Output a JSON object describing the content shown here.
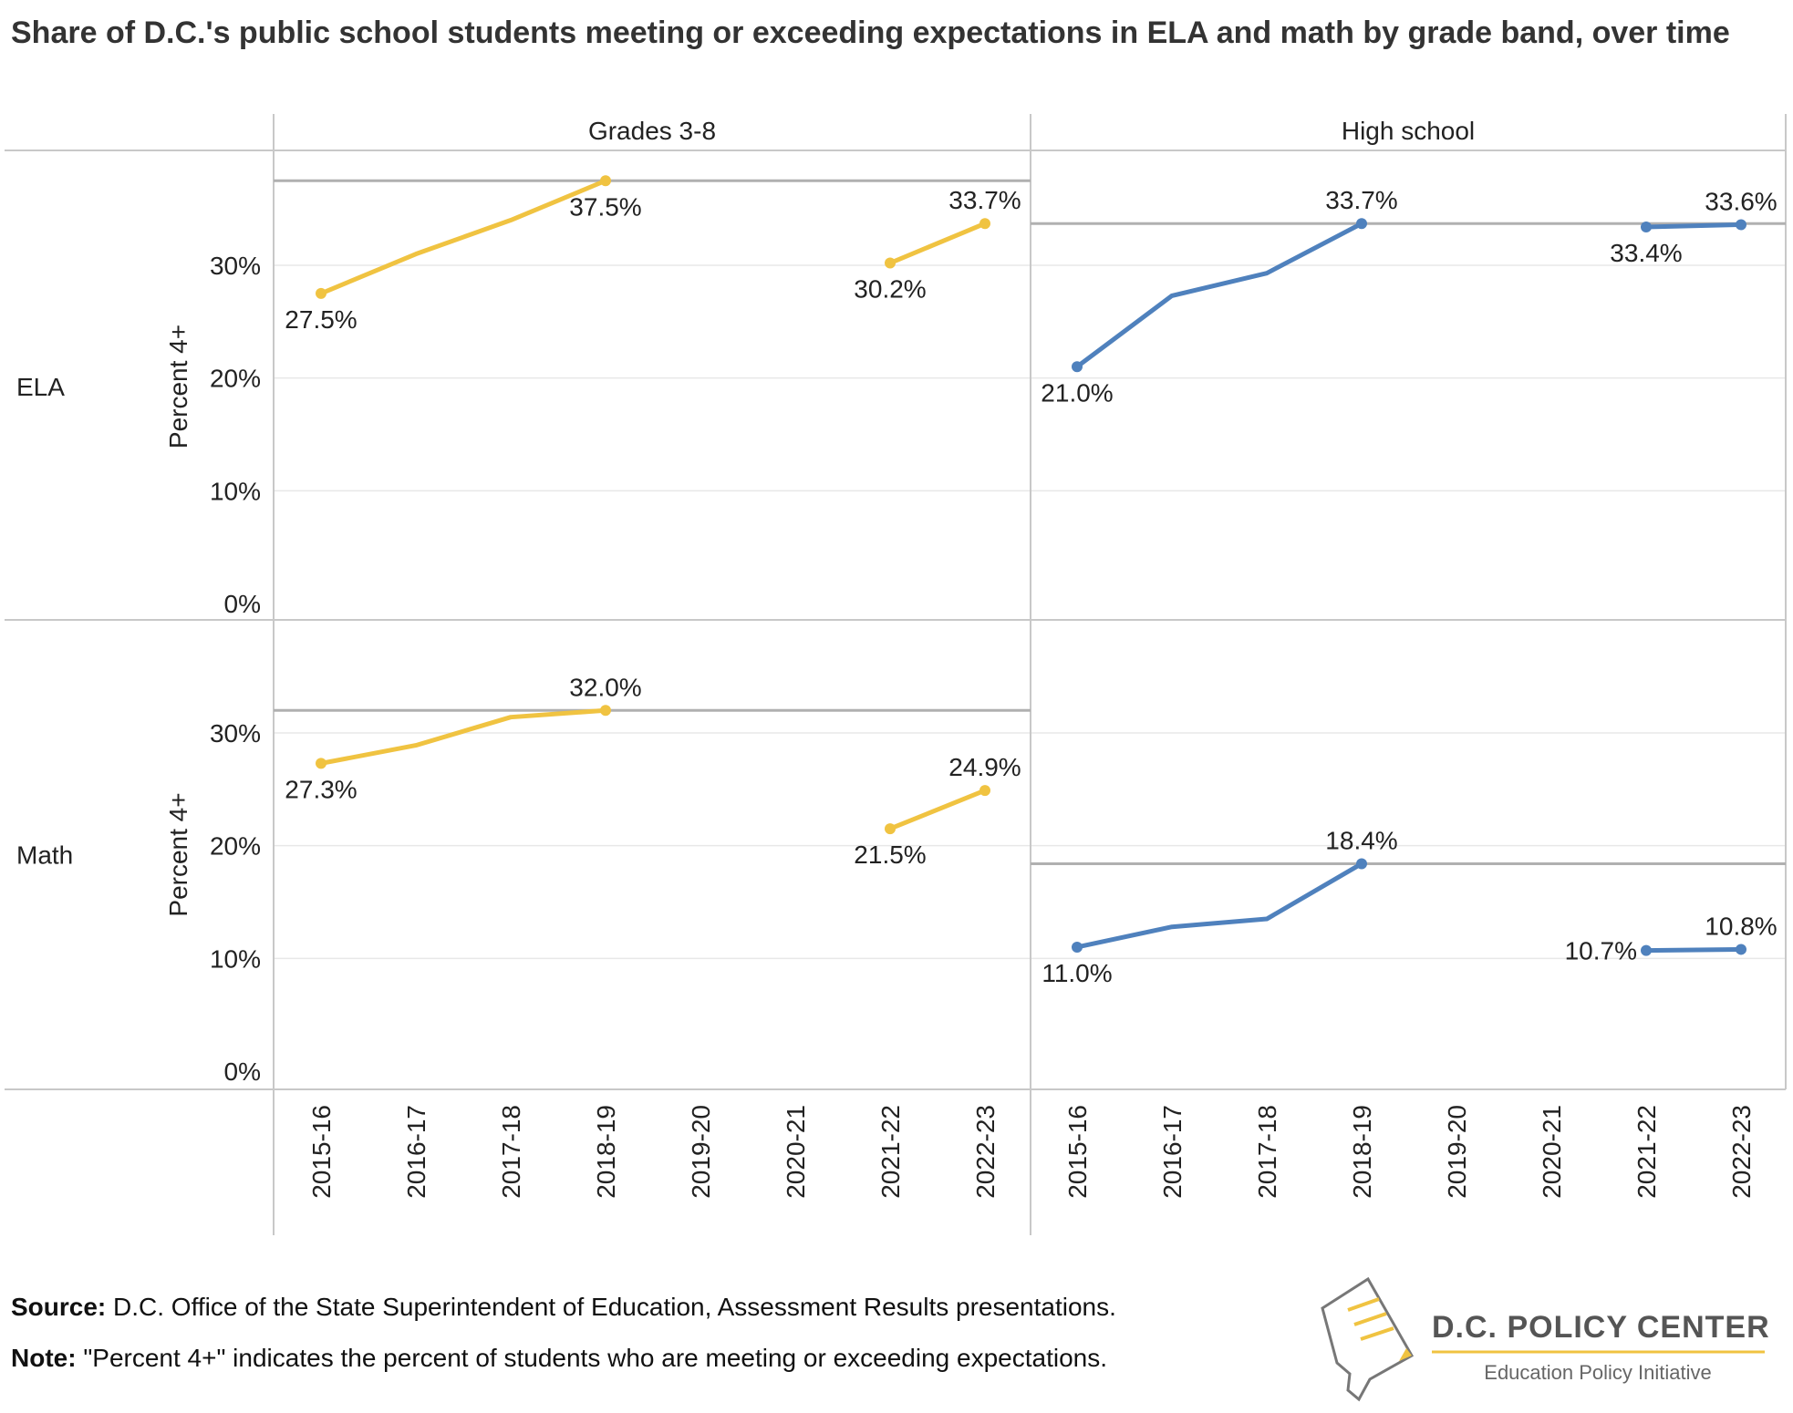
{
  "title": "Share of D.C.'s public school students meeting or exceeding expectations in ELA and math by grade band, over time",
  "footer": {
    "source_label": "Source:",
    "source_text": "D.C. Office of the State Superintendent of Education, Assessment Results presentations.",
    "note_label": "Note:",
    "note_text": "\"Percent 4+\" indicates the percent of students who are meeting or exceeding expectations."
  },
  "logo": {
    "name": "D.C. POLICY CENTER",
    "tagline": "Education Policy Initiative"
  },
  "colors": {
    "grades_3_8": "#f0c341",
    "high_school": "#4f81bd",
    "reference_line": "#b0b0b0",
    "grid": "#e8e8e8",
    "border": "#c8c8c8"
  },
  "chart_data": {
    "type": "line",
    "columns": [
      "Grades 3-8",
      "High school"
    ],
    "rows": [
      "ELA",
      "Math"
    ],
    "ylabel": "Percent 4+",
    "yticks": [
      "0%",
      "10%",
      "20%",
      "30%"
    ],
    "ylim": [
      0,
      40
    ],
    "x": [
      "2015-16",
      "2016-17",
      "2017-18",
      "2018-19",
      "2019-20",
      "2020-21",
      "2021-22",
      "2022-23"
    ],
    "panels": [
      {
        "row": "ELA",
        "column": "Grades 3-8",
        "series_color": "grades_3_8",
        "values": [
          27.5,
          31.0,
          34.0,
          37.5,
          null,
          null,
          30.2,
          33.7
        ],
        "reference": 37.5,
        "labels": [
          {
            "x": "2015-16",
            "text": "27.5%",
            "pos": "below"
          },
          {
            "x": "2018-19",
            "text": "37.5%",
            "pos": "below"
          },
          {
            "x": "2021-22",
            "text": "30.2%",
            "pos": "below"
          },
          {
            "x": "2022-23",
            "text": "33.7%",
            "pos": "above"
          }
        ]
      },
      {
        "row": "ELA",
        "column": "High school",
        "series_color": "high_school",
        "values": [
          21.0,
          27.3,
          29.3,
          33.7,
          null,
          null,
          33.4,
          33.6
        ],
        "reference": 33.7,
        "labels": [
          {
            "x": "2015-16",
            "text": "21.0%",
            "pos": "below"
          },
          {
            "x": "2018-19",
            "text": "33.7%",
            "pos": "above"
          },
          {
            "x": "2021-22",
            "text": "33.4%",
            "pos": "below"
          },
          {
            "x": "2022-23",
            "text": "33.6%",
            "pos": "above"
          }
        ]
      },
      {
        "row": "Math",
        "column": "Grades 3-8",
        "series_color": "grades_3_8",
        "values": [
          27.3,
          28.9,
          31.4,
          32.0,
          null,
          null,
          21.5,
          24.9
        ],
        "reference": 32.0,
        "labels": [
          {
            "x": "2015-16",
            "text": "27.3%",
            "pos": "below"
          },
          {
            "x": "2018-19",
            "text": "32.0%",
            "pos": "above"
          },
          {
            "x": "2021-22",
            "text": "21.5%",
            "pos": "below"
          },
          {
            "x": "2022-23",
            "text": "24.9%",
            "pos": "above"
          }
        ]
      },
      {
        "row": "Math",
        "column": "High school",
        "series_color": "high_school",
        "values": [
          11.0,
          12.8,
          13.5,
          18.4,
          null,
          null,
          10.7,
          10.8
        ],
        "reference": 18.4,
        "labels": [
          {
            "x": "2015-16",
            "text": "11.0%",
            "pos": "below"
          },
          {
            "x": "2018-19",
            "text": "18.4%",
            "pos": "above"
          },
          {
            "x": "2021-22",
            "text": "10.7%",
            "pos": "left"
          },
          {
            "x": "2022-23",
            "text": "10.8%",
            "pos": "above"
          }
        ]
      }
    ]
  }
}
